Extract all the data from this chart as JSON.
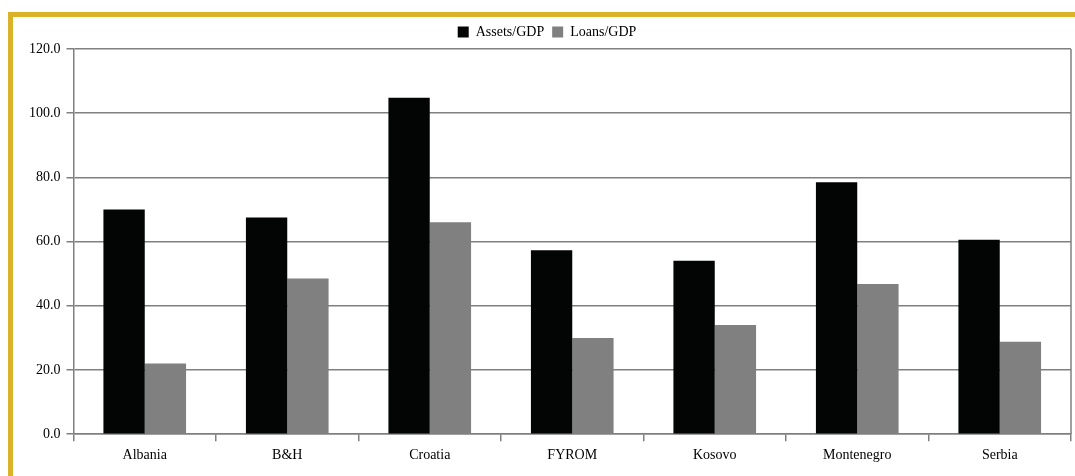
{
  "chart_data": {
    "type": "bar",
    "categories": [
      "Albania",
      "B&H",
      "Croatia",
      "FYROM",
      "Kosovo",
      "Montenegro",
      "Serbia"
    ],
    "series": [
      {
        "name": "Assets/GDP",
        "color": "#030504",
        "values": [
          70,
          67.5,
          104.8,
          57.3,
          54,
          78.5,
          60.6
        ]
      },
      {
        "name": "Loans/GDP",
        "color": "#808080",
        "values": [
          22,
          48.5,
          66,
          30,
          34,
          46.8,
          28.8
        ]
      }
    ],
    "ylim": [
      0,
      120
    ],
    "yticks": [
      {
        "value": 0,
        "label": "0.0"
      },
      {
        "value": 20,
        "label": "20.0"
      },
      {
        "value": 40,
        "label": "40.0"
      },
      {
        "value": 60,
        "label": "60.0"
      },
      {
        "value": 80,
        "label": "80.0"
      },
      {
        "value": 100,
        "label": "100.0"
      },
      {
        "value": 120,
        "label": "120.0"
      }
    ],
    "grid": "y",
    "legend": "top"
  }
}
